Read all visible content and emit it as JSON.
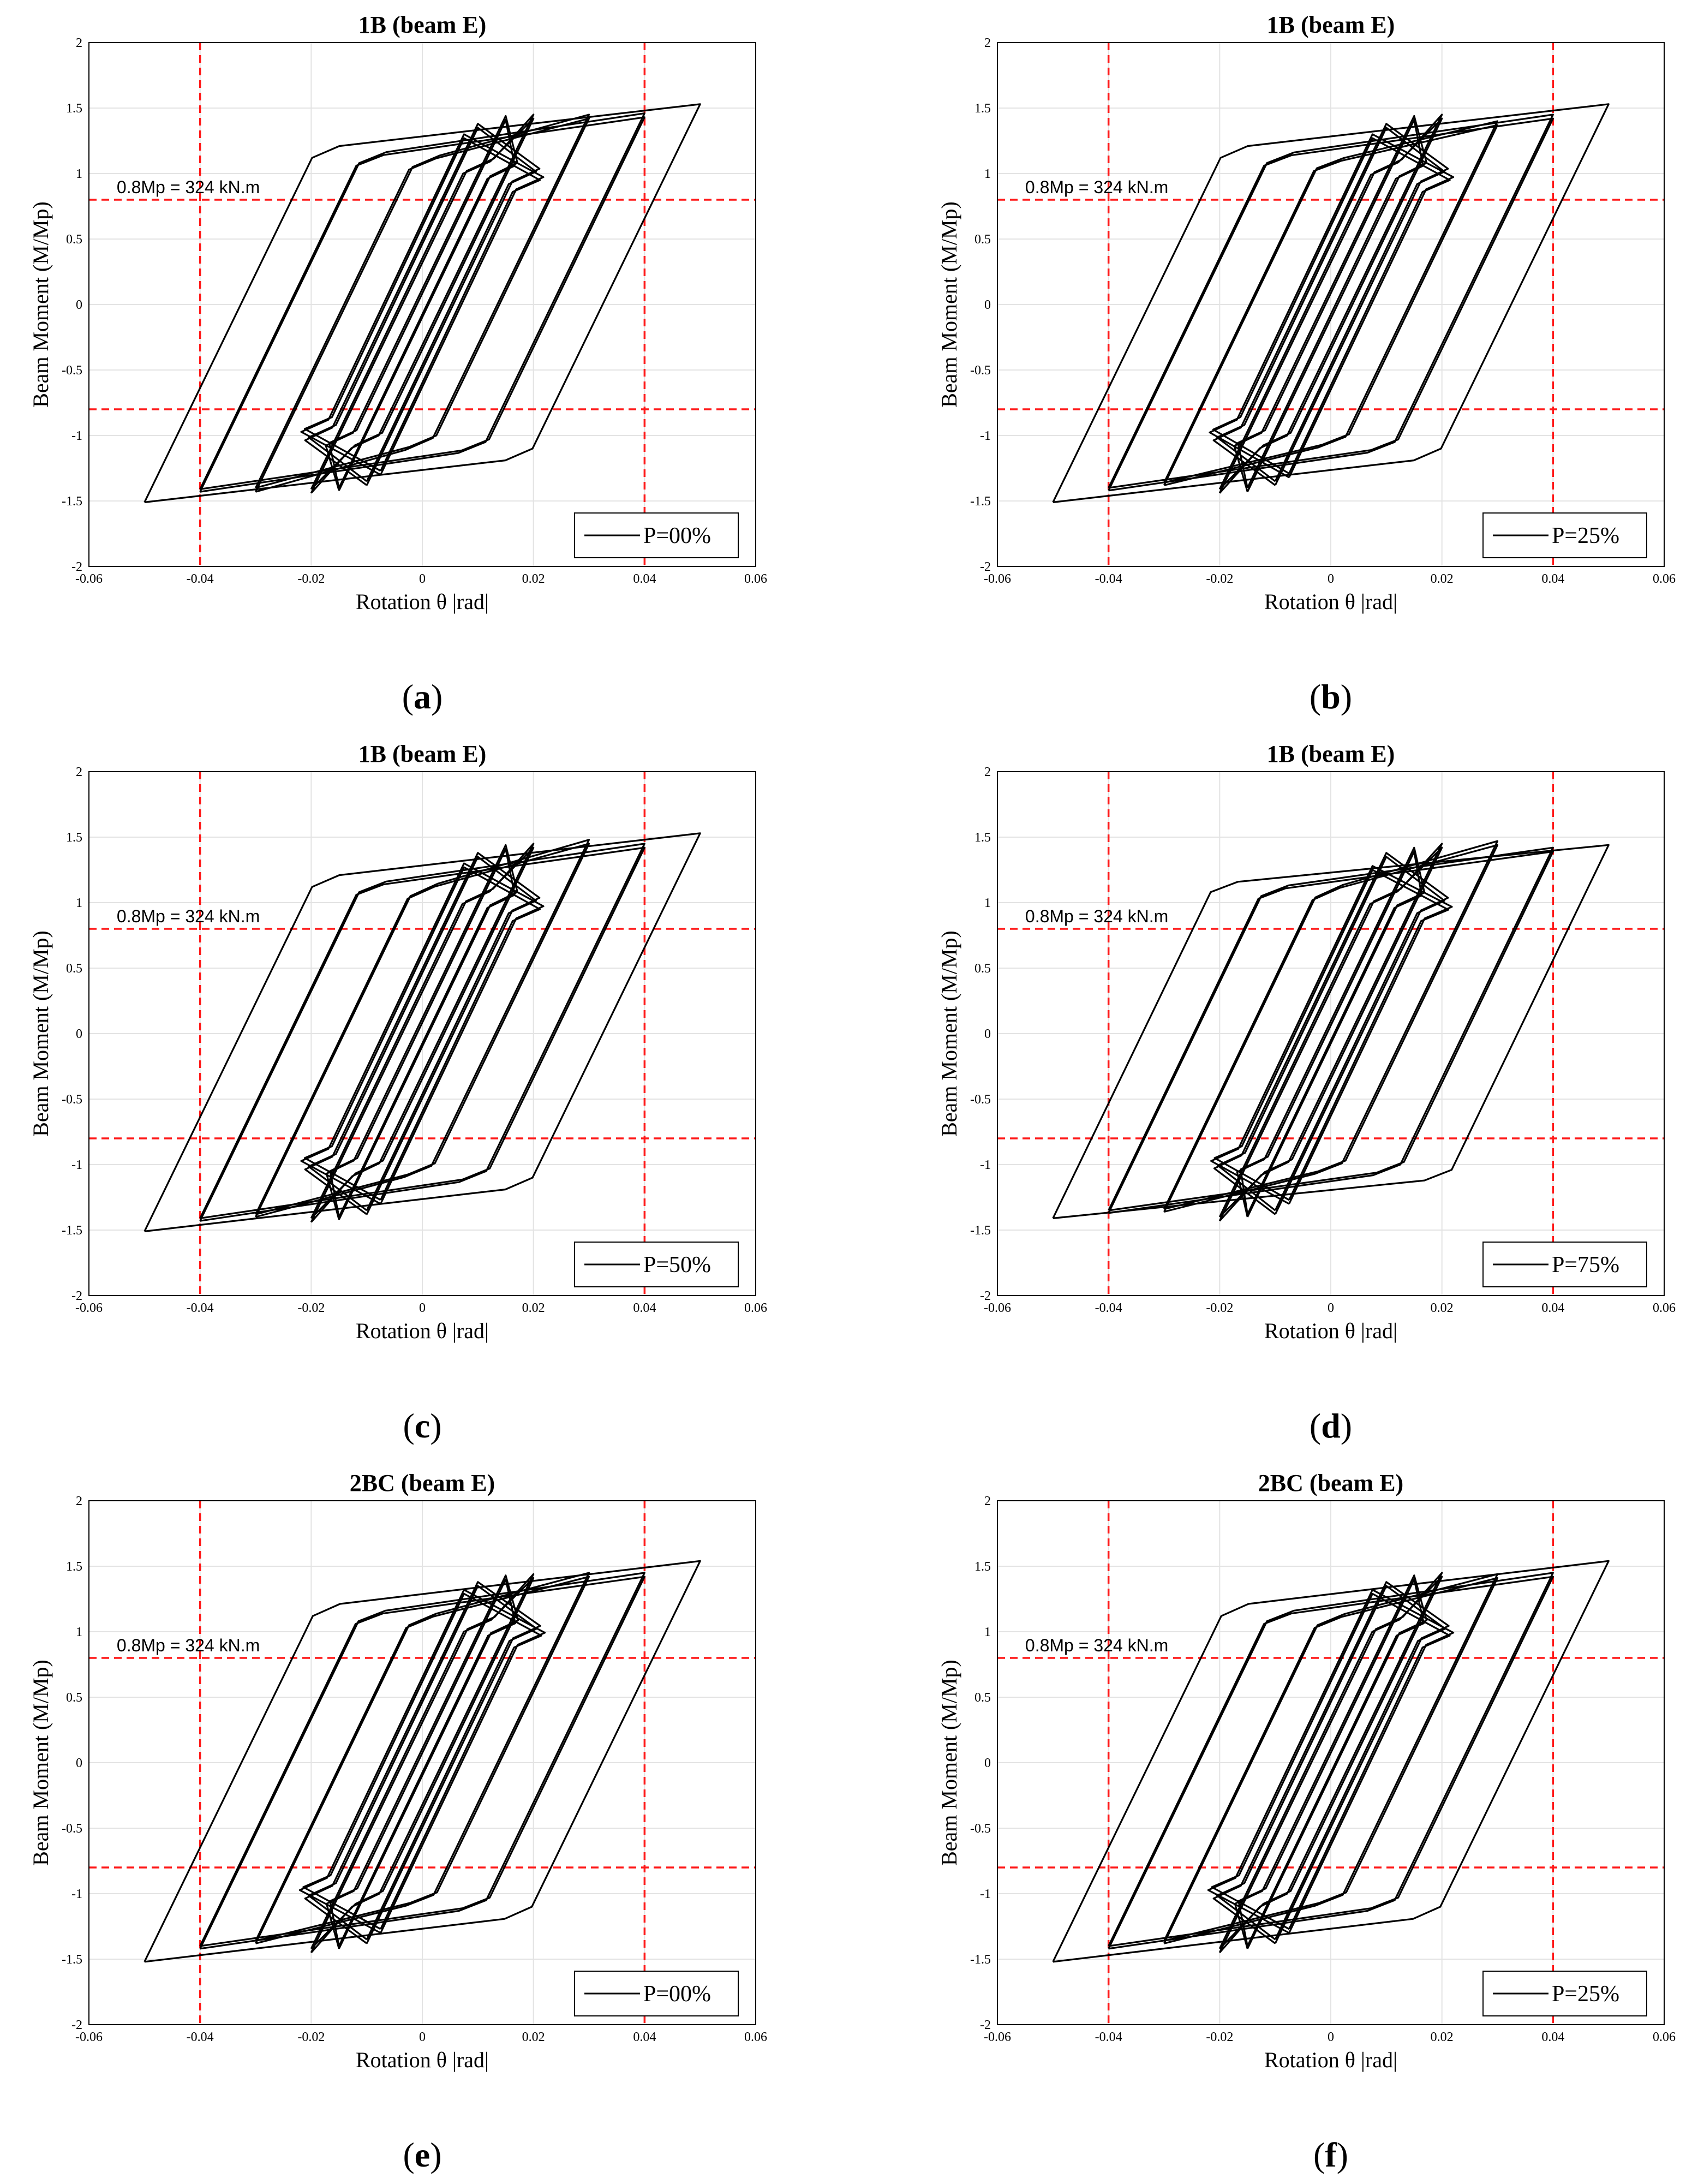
{
  "chart_data": [
    {
      "id": "a",
      "type": "line",
      "title": "1B (beam E)",
      "xlabel": "Rotation θ |rad|",
      "ylabel": "Beam Moment (M/Mp)",
      "xlim": [
        -0.06,
        0.06
      ],
      "ylim": [
        -2,
        2
      ],
      "xticks": [
        "-0.06",
        "-0.04",
        "-0.02",
        "0",
        "0.02",
        "0.04",
        "0.06"
      ],
      "yticks": [
        "-2",
        "-1.5",
        "-1",
        "-0.5",
        "0",
        "0.5",
        "1",
        "1.5",
        "2"
      ],
      "grid": true,
      "ref_lines": {
        "x": [
          -0.04,
          0.04
        ],
        "y": [
          -0.8,
          0.8
        ],
        "color": "#ff1a1a",
        "style": "dashed"
      },
      "annotation": {
        "text": "0.8Mp = 324 kN.m",
        "x": -0.055,
        "y": 0.85
      },
      "legend": {
        "label": "P=00%",
        "location": "bottom-right"
      },
      "caption": "(a)",
      "caption_letter": "a",
      "series": [
        {
          "name": "P=00%",
          "loops": [
            {
              "amp": 0.0075,
              "mp": 1.3,
              "mn": -1.3,
              "yp": 0.88,
              "yn": -0.88
            },
            {
              "amp": 0.0075,
              "mp": 1.27,
              "mn": -1.27,
              "yp": 0.86,
              "yn": -0.86
            },
            {
              "amp": 0.01,
              "mp": 1.38,
              "mn": -1.38,
              "yp": 0.94,
              "yn": -0.94
            },
            {
              "amp": 0.01,
              "mp": 1.35,
              "mn": -1.35,
              "yp": 0.92,
              "yn": -0.92
            },
            {
              "amp": 0.015,
              "mp": 1.44,
              "mn": -1.42,
              "yp": 0.98,
              "yn": -0.98
            },
            {
              "amp": 0.015,
              "mp": 1.41,
              "mn": -1.4,
              "yp": 0.96,
              "yn": -0.96
            },
            {
              "amp": 0.02,
              "mp": 1.45,
              "mn": -1.44,
              "yp": 1.02,
              "yn": -1.0
            },
            {
              "amp": 0.02,
              "mp": 1.42,
              "mn": -1.41,
              "yp": 1.0,
              "yn": -0.98
            },
            {
              "amp": 0.03,
              "mp": 1.45,
              "mn": -1.43,
              "yp": 1.05,
              "yn": -1.02
            },
            {
              "amp": 0.03,
              "mp": 1.42,
              "mn": -1.4,
              "yp": 1.03,
              "yn": -1.0
            },
            {
              "amp": 0.04,
              "mp": 1.46,
              "mn": -1.43,
              "yp": 1.08,
              "yn": -1.05
            },
            {
              "amp": 0.04,
              "mp": 1.43,
              "mn": -1.41,
              "yp": 1.06,
              "yn": -1.03
            },
            {
              "amp": 0.05,
              "mp": 1.53,
              "mn": -1.51,
              "yp": 1.12,
              "yn": -1.1
            }
          ]
        }
      ]
    },
    {
      "id": "b",
      "type": "line",
      "title": "1B (beam E)",
      "xlabel": "Rotation θ |rad|",
      "ylabel": "Beam Moment (M/Mp)",
      "xlim": [
        -0.06,
        0.06
      ],
      "ylim": [
        -2,
        2
      ],
      "xticks": [
        "-0.06",
        "-0.04",
        "-0.02",
        "0",
        "0.02",
        "0.04",
        "0.06"
      ],
      "yticks": [
        "-2",
        "-1.5",
        "-1",
        "-0.5",
        "0",
        "0.5",
        "1",
        "1.5",
        "2"
      ],
      "grid": true,
      "ref_lines": {
        "x": [
          -0.04,
          0.04
        ],
        "y": [
          -0.8,
          0.8
        ],
        "color": "#ff1a1a",
        "style": "dashed"
      },
      "annotation": {
        "text": "0.8Mp = 324 kN.m",
        "x": -0.055,
        "y": 0.85
      },
      "legend": {
        "label": "P=25%",
        "location": "bottom-right"
      },
      "caption": "(b)",
      "caption_letter": "b",
      "series": [
        {
          "name": "P=25%",
          "loops": [
            {
              "amp": 0.0075,
              "mp": 1.3,
              "mn": -1.32,
              "yp": 0.88,
              "yn": -0.88
            },
            {
              "amp": 0.0075,
              "mp": 1.27,
              "mn": -1.29,
              "yp": 0.86,
              "yn": -0.86
            },
            {
              "amp": 0.01,
              "mp": 1.38,
              "mn": -1.38,
              "yp": 0.94,
              "yn": -0.94
            },
            {
              "amp": 0.01,
              "mp": 1.35,
              "mn": -1.35,
              "yp": 0.92,
              "yn": -0.92
            },
            {
              "amp": 0.015,
              "mp": 1.44,
              "mn": -1.43,
              "yp": 0.98,
              "yn": -0.98
            },
            {
              "amp": 0.015,
              "mp": 1.41,
              "mn": -1.4,
              "yp": 0.96,
              "yn": -0.96
            },
            {
              "amp": 0.02,
              "mp": 1.45,
              "mn": -1.44,
              "yp": 1.01,
              "yn": -1.0
            },
            {
              "amp": 0.02,
              "mp": 1.42,
              "mn": -1.41,
              "yp": 0.99,
              "yn": -0.98
            },
            {
              "amp": 0.03,
              "mp": 1.4,
              "mn": -1.38,
              "yp": 1.04,
              "yn": -1.01
            },
            {
              "amp": 0.03,
              "mp": 1.37,
              "mn": -1.36,
              "yp": 1.02,
              "yn": -0.99
            },
            {
              "amp": 0.04,
              "mp": 1.45,
              "mn": -1.42,
              "yp": 1.08,
              "yn": -1.05
            },
            {
              "amp": 0.04,
              "mp": 1.42,
              "mn": -1.4,
              "yp": 1.06,
              "yn": -1.03
            },
            {
              "amp": 0.05,
              "mp": 1.53,
              "mn": -1.51,
              "yp": 1.12,
              "yn": -1.1
            }
          ]
        }
      ]
    },
    {
      "id": "c",
      "type": "line",
      "title": "1B (beam E)",
      "xlabel": "Rotation θ |rad|",
      "ylabel": "Beam Moment (M/Mp)",
      "xlim": [
        -0.06,
        0.06
      ],
      "ylim": [
        -2,
        2
      ],
      "xticks": [
        "-0.06",
        "-0.04",
        "-0.02",
        "0",
        "0.02",
        "0.04",
        "0.06"
      ],
      "yticks": [
        "-2",
        "-1.5",
        "-1",
        "-0.5",
        "0",
        "0.5",
        "1",
        "1.5",
        "2"
      ],
      "grid": true,
      "ref_lines": {
        "x": [
          -0.04,
          0.04
        ],
        "y": [
          -0.8,
          0.8
        ],
        "color": "#ff1a1a",
        "style": "dashed"
      },
      "annotation": {
        "text": "0.8Mp = 324 kN.m",
        "x": -0.055,
        "y": 0.85
      },
      "legend": {
        "label": "P=50%",
        "location": "bottom-right"
      },
      "caption": "(c)",
      "caption_letter": "c",
      "series": [
        {
          "name": "P=50%",
          "loops": [
            {
              "amp": 0.0075,
              "mp": 1.3,
              "mn": -1.3,
              "yp": 0.88,
              "yn": -0.88
            },
            {
              "amp": 0.0075,
              "mp": 1.27,
              "mn": -1.27,
              "yp": 0.86,
              "yn": -0.86
            },
            {
              "amp": 0.01,
              "mp": 1.38,
              "mn": -1.38,
              "yp": 0.94,
              "yn": -0.94
            },
            {
              "amp": 0.01,
              "mp": 1.35,
              "mn": -1.35,
              "yp": 0.92,
              "yn": -0.92
            },
            {
              "amp": 0.015,
              "mp": 1.44,
              "mn": -1.42,
              "yp": 0.98,
              "yn": -0.97
            },
            {
              "amp": 0.015,
              "mp": 1.41,
              "mn": -1.4,
              "yp": 0.96,
              "yn": -0.95
            },
            {
              "amp": 0.02,
              "mp": 1.45,
              "mn": -1.44,
              "yp": 1.01,
              "yn": -0.99
            },
            {
              "amp": 0.02,
              "mp": 1.42,
              "mn": -1.41,
              "yp": 0.99,
              "yn": -0.97
            },
            {
              "amp": 0.03,
              "mp": 1.48,
              "mn": -1.4,
              "yp": 1.05,
              "yn": -1.01
            },
            {
              "amp": 0.03,
              "mp": 1.45,
              "mn": -1.38,
              "yp": 1.03,
              "yn": -0.99
            },
            {
              "amp": 0.04,
              "mp": 1.45,
              "mn": -1.43,
              "yp": 1.08,
              "yn": -1.05
            },
            {
              "amp": 0.04,
              "mp": 1.42,
              "mn": -1.41,
              "yp": 1.06,
              "yn": -1.03
            },
            {
              "amp": 0.05,
              "mp": 1.53,
              "mn": -1.51,
              "yp": 1.12,
              "yn": -1.1
            }
          ]
        }
      ]
    },
    {
      "id": "d",
      "type": "line",
      "title": "1B (beam E)",
      "xlabel": "Rotation θ |rad|",
      "ylabel": "Beam Moment (M/Mp)",
      "xlim": [
        -0.06,
        0.06
      ],
      "ylim": [
        -2,
        2
      ],
      "xticks": [
        "-0.06",
        "-0.04",
        "-0.02",
        "0",
        "0.02",
        "0.04",
        "0.06"
      ],
      "yticks": [
        "-2",
        "-1.5",
        "-1",
        "-0.5",
        "0",
        "0.5",
        "1",
        "1.5",
        "2"
      ],
      "grid": true,
      "ref_lines": {
        "x": [
          -0.04,
          0.04
        ],
        "y": [
          -0.8,
          0.8
        ],
        "color": "#ff1a1a",
        "style": "dashed"
      },
      "annotation": {
        "text": "0.8Mp = 324 kN.m",
        "x": -0.055,
        "y": 0.85
      },
      "legend": {
        "label": "P=75%",
        "location": "bottom-right"
      },
      "caption": "(d)",
      "caption_letter": "d",
      "series": [
        {
          "name": "P=75%",
          "loops": [
            {
              "amp": 0.0075,
              "mp": 1.28,
              "mn": -1.3,
              "yp": 0.88,
              "yn": -0.88
            },
            {
              "amp": 0.0075,
              "mp": 1.25,
              "mn": -1.27,
              "yp": 0.86,
              "yn": -0.86
            },
            {
              "amp": 0.01,
              "mp": 1.38,
              "mn": -1.38,
              "yp": 0.94,
              "yn": -0.93
            },
            {
              "amp": 0.01,
              "mp": 1.35,
              "mn": -1.35,
              "yp": 0.92,
              "yn": -0.91
            },
            {
              "amp": 0.015,
              "mp": 1.42,
              "mn": -1.4,
              "yp": 0.98,
              "yn": -0.96
            },
            {
              "amp": 0.015,
              "mp": 1.39,
              "mn": -1.38,
              "yp": 0.96,
              "yn": -0.94
            },
            {
              "amp": 0.02,
              "mp": 1.45,
              "mn": -1.43,
              "yp": 1.01,
              "yn": -0.98
            },
            {
              "amp": 0.02,
              "mp": 1.42,
              "mn": -1.4,
              "yp": 0.99,
              "yn": -0.96
            },
            {
              "amp": 0.03,
              "mp": 1.47,
              "mn": -1.36,
              "yp": 1.04,
              "yn": -0.99
            },
            {
              "amp": 0.03,
              "mp": 1.44,
              "mn": -1.34,
              "yp": 1.02,
              "yn": -0.97
            },
            {
              "amp": 0.04,
              "mp": 1.42,
              "mn": -1.37,
              "yp": 1.05,
              "yn": -1.0
            },
            {
              "amp": 0.04,
              "mp": 1.39,
              "mn": -1.35,
              "yp": 1.03,
              "yn": -0.98
            },
            {
              "amp": 0.05,
              "mp": 1.44,
              "mn": -1.41,
              "yp": 1.08,
              "yn": -1.04
            }
          ]
        }
      ]
    },
    {
      "id": "e",
      "type": "line",
      "title": "2BC (beam E)",
      "xlabel": "Rotation θ |rad|",
      "ylabel": "Beam Moment (M/Mp)",
      "xlim": [
        -0.06,
        0.06
      ],
      "ylim": [
        -2,
        2
      ],
      "xticks": [
        "-0.06",
        "-0.04",
        "-0.02",
        "0",
        "0.02",
        "0.04",
        "0.06"
      ],
      "yticks": [
        "-2",
        "-1.5",
        "-1",
        "-0.5",
        "0",
        "0.5",
        "1",
        "1.5",
        "2"
      ],
      "grid": true,
      "ref_lines": {
        "x": [
          -0.04,
          0.04
        ],
        "y": [
          -0.8,
          0.8
        ],
        "color": "#ff1a1a",
        "style": "dashed"
      },
      "annotation": {
        "text": "0.8Mp = 324 kN.m",
        "x": -0.055,
        "y": 0.85
      },
      "legend": {
        "label": "P=00%",
        "location": "bottom-right"
      },
      "caption": "(e)",
      "caption_letter": "e",
      "series": [
        {
          "name": "P=00%",
          "loops": [
            {
              "amp": 0.0075,
              "mp": 1.32,
              "mn": -1.3,
              "yp": 0.9,
              "yn": -0.88
            },
            {
              "amp": 0.0075,
              "mp": 1.29,
              "mn": -1.27,
              "yp": 0.88,
              "yn": -0.86
            },
            {
              "amp": 0.01,
              "mp": 1.38,
              "mn": -1.38,
              "yp": 0.95,
              "yn": -0.94
            },
            {
              "amp": 0.01,
              "mp": 1.35,
              "mn": -1.35,
              "yp": 0.93,
              "yn": -0.92
            },
            {
              "amp": 0.015,
              "mp": 1.43,
              "mn": -1.42,
              "yp": 0.99,
              "yn": -0.98
            },
            {
              "amp": 0.015,
              "mp": 1.4,
              "mn": -1.4,
              "yp": 0.97,
              "yn": -0.96
            },
            {
              "amp": 0.02,
              "mp": 1.44,
              "mn": -1.45,
              "yp": 1.02,
              "yn": -1.0
            },
            {
              "amp": 0.02,
              "mp": 1.41,
              "mn": -1.42,
              "yp": 1.0,
              "yn": -0.98
            },
            {
              "amp": 0.03,
              "mp": 1.45,
              "mn": -1.38,
              "yp": 1.05,
              "yn": -1.01
            },
            {
              "amp": 0.03,
              "mp": 1.42,
              "mn": -1.36,
              "yp": 1.03,
              "yn": -0.99
            },
            {
              "amp": 0.04,
              "mp": 1.45,
              "mn": -1.42,
              "yp": 1.08,
              "yn": -1.05
            },
            {
              "amp": 0.04,
              "mp": 1.42,
              "mn": -1.4,
              "yp": 1.06,
              "yn": -1.03
            },
            {
              "amp": 0.05,
              "mp": 1.54,
              "mn": -1.52,
              "yp": 1.12,
              "yn": -1.1
            }
          ]
        }
      ]
    },
    {
      "id": "f",
      "type": "line",
      "title": "2BC (beam E)",
      "xlabel": "Rotation θ |rad|",
      "ylabel": "Beam Moment (M/Mp)",
      "xlim": [
        -0.06,
        0.06
      ],
      "ylim": [
        -2,
        2
      ],
      "xticks": [
        "-0.06",
        "-0.04",
        "-0.02",
        "0",
        "0.02",
        "0.04",
        "0.06"
      ],
      "yticks": [
        "-2",
        "-1.5",
        "-1",
        "-0.5",
        "0",
        "0.5",
        "1",
        "1.5",
        "2"
      ],
      "grid": true,
      "ref_lines": {
        "x": [
          -0.04,
          0.04
        ],
        "y": [
          -0.8,
          0.8
        ],
        "color": "#ff1a1a",
        "style": "dashed"
      },
      "annotation": {
        "text": "0.8Mp = 324 kN.m",
        "x": -0.055,
        "y": 0.85
      },
      "legend": {
        "label": "P=25%",
        "location": "bottom-right"
      },
      "caption": "(f)",
      "caption_letter": "f",
      "series": [
        {
          "name": "P=25%",
          "loops": [
            {
              "amp": 0.0075,
              "mp": 1.32,
              "mn": -1.3,
              "yp": 0.9,
              "yn": -0.88
            },
            {
              "amp": 0.0075,
              "mp": 1.29,
              "mn": -1.27,
              "yp": 0.88,
              "yn": -0.86
            },
            {
              "amp": 0.01,
              "mp": 1.38,
              "mn": -1.38,
              "yp": 0.95,
              "yn": -0.94
            },
            {
              "amp": 0.01,
              "mp": 1.35,
              "mn": -1.35,
              "yp": 0.93,
              "yn": -0.92
            },
            {
              "amp": 0.015,
              "mp": 1.43,
              "mn": -1.42,
              "yp": 0.99,
              "yn": -0.98
            },
            {
              "amp": 0.015,
              "mp": 1.4,
              "mn": -1.4,
              "yp": 0.97,
              "yn": -0.96
            },
            {
              "amp": 0.02,
              "mp": 1.45,
              "mn": -1.45,
              "yp": 1.02,
              "yn": -1.0
            },
            {
              "amp": 0.02,
              "mp": 1.42,
              "mn": -1.42,
              "yp": 1.0,
              "yn": -0.98
            },
            {
              "amp": 0.03,
              "mp": 1.44,
              "mn": -1.38,
              "yp": 1.05,
              "yn": -1.01
            },
            {
              "amp": 0.03,
              "mp": 1.41,
              "mn": -1.36,
              "yp": 1.03,
              "yn": -0.99
            },
            {
              "amp": 0.04,
              "mp": 1.45,
              "mn": -1.42,
              "yp": 1.08,
              "yn": -1.05
            },
            {
              "amp": 0.04,
              "mp": 1.42,
              "mn": -1.4,
              "yp": 1.06,
              "yn": -1.03
            },
            {
              "amp": 0.05,
              "mp": 1.54,
              "mn": -1.52,
              "yp": 1.12,
              "yn": -1.1
            }
          ]
        }
      ]
    }
  ]
}
